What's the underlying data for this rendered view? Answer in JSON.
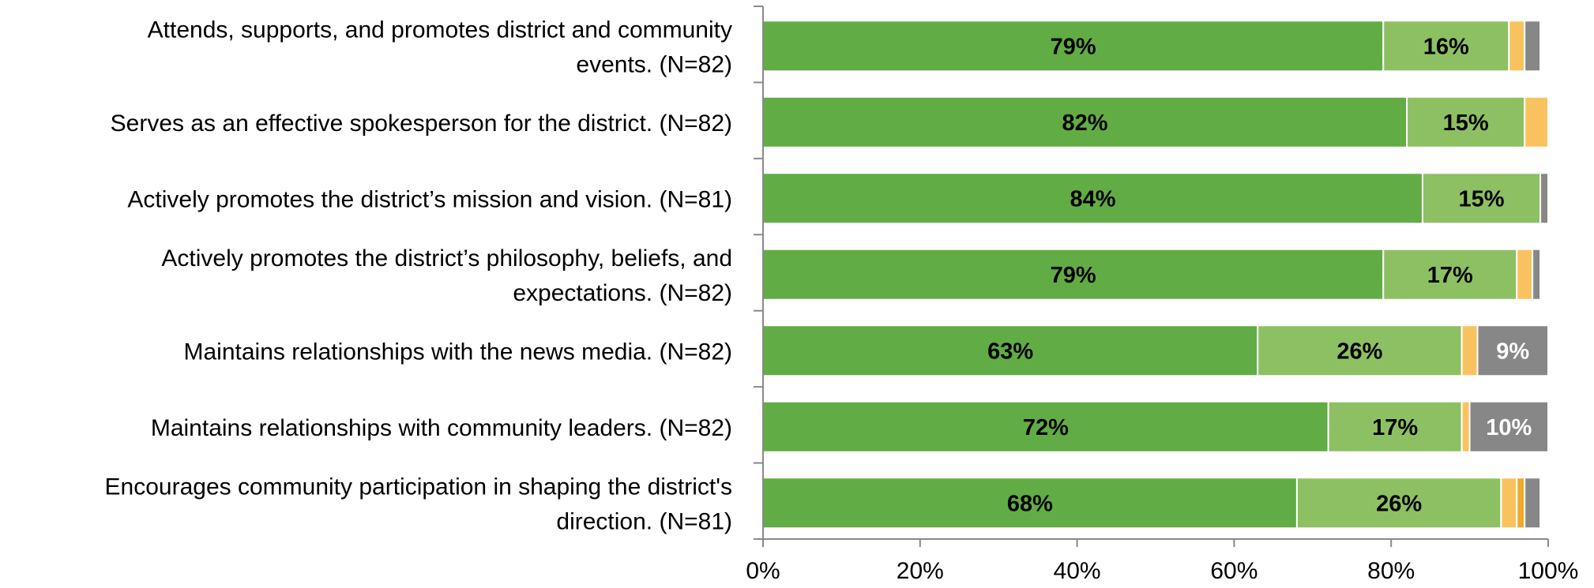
{
  "chart_data": {
    "type": "bar",
    "orientation": "horizontal",
    "stacked": true,
    "categories": [
      [
        "Attends, supports, and promotes district and community",
        "events. (N=82)"
      ],
      [
        "Serves as an effective spokesperson for the district. (N=82)"
      ],
      [
        "Actively promotes the district’s mission and vision. (N=81)"
      ],
      [
        "Actively promotes the district’s philosophy, beliefs, and",
        "expectations. (N=82)"
      ],
      [
        "Maintains relationships with the news media. (N=82)"
      ],
      [
        "Maintains relationships with community leaders. (N=82)"
      ],
      [
        "Encourages community participation in shaping the district's",
        "direction. (N=81)"
      ]
    ],
    "series": [
      {
        "color": "#62AC46",
        "label_color": "#000000",
        "values": [
          79,
          82,
          84,
          79,
          63,
          72,
          68
        ],
        "labels": [
          "79%",
          "82%",
          "84%",
          "79%",
          "63%",
          "72%",
          "68%"
        ]
      },
      {
        "color": "#8DC063",
        "label_color": "#000000",
        "values": [
          16,
          15,
          15,
          17,
          26,
          17,
          26
        ],
        "labels": [
          "16%",
          "15%",
          "15%",
          "17%",
          "26%",
          "17%",
          "26%"
        ]
      },
      {
        "color": "#F8C35F",
        "label_color": "#000000",
        "values": [
          2,
          3,
          0,
          2,
          2,
          1,
          2
        ],
        "labels": [
          "",
          "",
          "",
          "",
          "",
          "",
          ""
        ]
      },
      {
        "color": "#F0A92A",
        "label_color": "#000000",
        "values": [
          0,
          0,
          0,
          0,
          0,
          0,
          1
        ],
        "labels": [
          "",
          "",
          "",
          "",
          "",
          "",
          ""
        ]
      },
      {
        "color": "#878787",
        "label_color": "#ffffff",
        "values": [
          2,
          0,
          1,
          1,
          9,
          10,
          2
        ],
        "labels": [
          "",
          "",
          "",
          "",
          "9%",
          "10%",
          ""
        ]
      }
    ],
    "xlim": [
      0,
      100
    ],
    "ticks": [
      "0%",
      "20%",
      "40%",
      "60%",
      "80%",
      "100%"
    ],
    "tick_values": [
      0,
      20,
      40,
      60,
      80,
      100
    ],
    "grid": false,
    "legend": "none",
    "title": "",
    "xlabel": "",
    "ylabel": "",
    "colors": {
      "axis": "#898989",
      "separator": "#ffffff"
    }
  }
}
